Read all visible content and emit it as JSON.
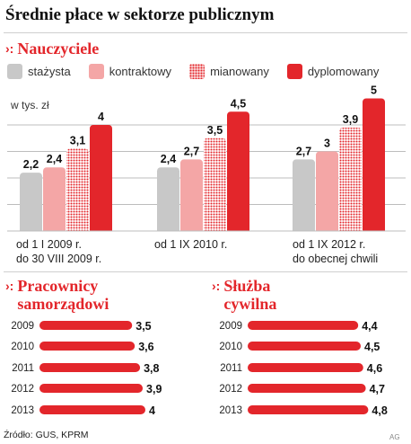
{
  "title": "Średnie płace w sektorze publicznym",
  "teachers": {
    "heading": "Nauczyciele",
    "unit": "w tys. zł",
    "legend": [
      {
        "label": "stażysta",
        "color": "#c8c8c8",
        "pattern": "solid"
      },
      {
        "label": "kontraktowy",
        "color": "#f4a6a6",
        "pattern": "solid"
      },
      {
        "label": "mianowany",
        "color": "#e3262b",
        "pattern": "dots"
      },
      {
        "label": "dyplomowany",
        "color": "#e3262b",
        "pattern": "solid"
      }
    ],
    "periods": [
      {
        "line1": "od 1 I 2009 r.",
        "line2": "do 30 VIII 2009 r."
      },
      {
        "line1": "od 1 IX 2010 r.",
        "line2": ""
      },
      {
        "line1": "od 1 IX 2012 r.",
        "line2": "do obecnej chwili"
      }
    ]
  },
  "local_gov": {
    "heading_line1": "Pracownicy",
    "heading_line2": "samorządowi"
  },
  "civil_service": {
    "heading_line1": "Służba",
    "heading_line2": "cywilna"
  },
  "chart_data": [
    {
      "type": "bar",
      "title": "Nauczyciele",
      "ylabel": "w tys. zł",
      "categories": [
        "od 1 I 2009 r. do 30 VIII 2009 r.",
        "od 1 IX 2010 r.",
        "od 1 IX 2012 r. do obecnej chwili"
      ],
      "series": [
        {
          "name": "stażysta",
          "values": [
            2.2,
            2.4,
            2.7
          ],
          "labels": [
            "2,2",
            "2,4",
            "2,7"
          ]
        },
        {
          "name": "kontraktowy",
          "values": [
            2.4,
            2.7,
            3.0
          ],
          "labels": [
            "2,4",
            "2,7",
            "3"
          ]
        },
        {
          "name": "mianowany",
          "values": [
            3.1,
            3.5,
            3.9
          ],
          "labels": [
            "3,1",
            "3,5",
            "3,9"
          ]
        },
        {
          "name": "dyplomowany",
          "values": [
            4.0,
            4.5,
            5.0
          ],
          "labels": [
            "4",
            "4,5",
            "5"
          ]
        }
      ],
      "ylim": [
        0,
        5.5
      ],
      "grid": true
    },
    {
      "type": "bar",
      "orientation": "horizontal",
      "title": "Pracownicy samorządowi",
      "categories": [
        "2009",
        "2010",
        "2011",
        "2012",
        "2013"
      ],
      "values": [
        3.5,
        3.6,
        3.8,
        3.9,
        4.0
      ],
      "labels": [
        "3,5",
        "3,6",
        "3,8",
        "3,9",
        "4"
      ]
    },
    {
      "type": "bar",
      "orientation": "horizontal",
      "title": "Służba cywilna",
      "categories": [
        "2009",
        "2010",
        "2011",
        "2012",
        "2013"
      ],
      "values": [
        4.4,
        4.5,
        4.6,
        4.7,
        4.8
      ],
      "labels": [
        "4,4",
        "4,5",
        "4,6",
        "4,7",
        "4,8"
      ]
    }
  ],
  "source": "Źródło: GUS, KPRM",
  "author": "AG"
}
